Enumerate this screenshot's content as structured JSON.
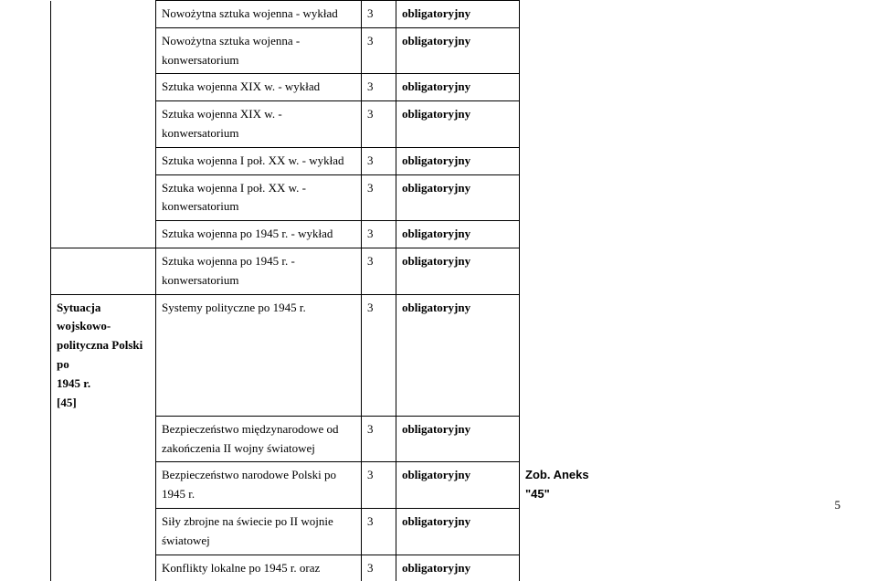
{
  "rows": [
    {
      "col1": "Nowożytna sztuka wojenna - wykład",
      "col2": "3",
      "col3": "obligatoryjny"
    },
    {
      "col1": "Nowożytna sztuka wojenna - konwersatorium",
      "col2": "3",
      "col3": "obligatoryjny"
    },
    {
      "col1": "Sztuka wojenna XIX w. - wykład",
      "col2": "3",
      "col3": "obligatoryjny"
    },
    {
      "col1": "Sztuka wojenna XIX w. - konwersatorium",
      "col2": "3",
      "col3": "obligatoryjny"
    },
    {
      "col1": "Sztuka wojenna I poł. XX w. - wykład",
      "col2": "3",
      "col3": "obligatoryjny"
    },
    {
      "col1": "Sztuka wojenna I poł. XX w. - konwersatorium",
      "col2": "3",
      "col3": "obligatoryjny"
    },
    {
      "col1": "Sztuka wojenna po 1945 r. - wykład",
      "col2": "3",
      "col3": "obligatoryjny"
    },
    {
      "col1": "Sztuka wojenna po 1945 r. - konwersatorium",
      "col2": "3",
      "col3": "obligatoryjny"
    },
    {
      "col1": "Systemy polityczne po 1945 r.",
      "col2": "3",
      "col3": "obligatoryjny"
    },
    {
      "col1": "Bezpieczeństwo międzynarodowe od zakończenia II wojny światowej",
      "col2": "3",
      "col3": "obligatoryjny"
    },
    {
      "col1": "Bezpieczeństwo narodowe Polski po 1945 r.",
      "col2": "3",
      "col3": "obligatoryjny"
    },
    {
      "col1": "Siły zbrojne na świecie po II wojnie światowej",
      "col2": "3",
      "col3": "obligatoryjny"
    },
    {
      "col1": "Konflikty lokalne po 1945 r. oraz",
      "col2": "3",
      "col3": "obligatoryjny"
    }
  ],
  "section": {
    "line1": "Sytuacja wojskowo-",
    "line2": "polityczna Polski po",
    "line3": "1945 r.",
    "ref": "[45]"
  },
  "aneks": "Zob. Aneks \"45\"",
  "pageno": "5"
}
